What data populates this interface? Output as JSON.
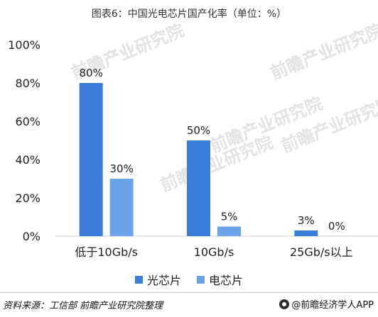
{
  "chart_data": {
    "type": "bar",
    "title": "图表6：中国光电芯片国产化率（单位：%）",
    "categories": [
      "低于10Gb/s",
      "10Gb/s",
      "25Gb/s以上"
    ],
    "series": [
      {
        "name": "光芯片",
        "values": [
          80,
          50,
          3
        ],
        "color": "#3a7ddb"
      },
      {
        "name": "电芯片",
        "values": [
          30,
          5,
          0
        ],
        "color": "#6aa3ea"
      }
    ],
    "data_labels": [
      [
        "80%",
        "50%",
        "3%"
      ],
      [
        "30%",
        "5%",
        "0%"
      ]
    ],
    "yticks": [
      "0%",
      "20%",
      "40%",
      "60%",
      "80%",
      "100%"
    ],
    "ylim": [
      0,
      100
    ],
    "grid": false,
    "legend_position": "bottom",
    "xlabel": "",
    "ylabel": ""
  },
  "footer": {
    "source": "资料来源：工信部 前瞻产业研究院整理",
    "brand": "@前瞻经济学人APP"
  },
  "watermark_text": "前瞻产业研究院"
}
